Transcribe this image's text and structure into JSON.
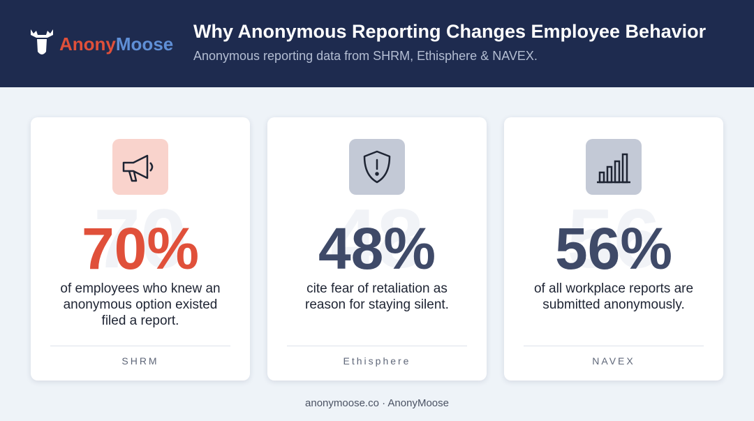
{
  "header": {
    "logo": {
      "part1": "Anony",
      "part2": "Moose"
    },
    "title": "Why Anonymous Reporting Changes Employee Behavior",
    "subtitle": "Anonymous reporting data from SHRM, Ethisphere & NAVEX."
  },
  "cards": [
    {
      "ghost": "70",
      "stat": "70%",
      "lines": [
        "of employees who knew an",
        "anonymous option existed",
        "filed a report."
      ],
      "source": "SHRM"
    },
    {
      "ghost": "48",
      "stat": "48%",
      "lines": [
        "cite fear of retaliation as",
        "reason for staying silent."
      ],
      "source": "Ethisphere"
    },
    {
      "ghost": "56",
      "stat": "56%",
      "lines": [
        "of all workplace reports are",
        "submitted anonymously."
      ],
      "source": "NAVEX"
    }
  ],
  "footer": "anonymoose.co · AnonyMoose"
}
